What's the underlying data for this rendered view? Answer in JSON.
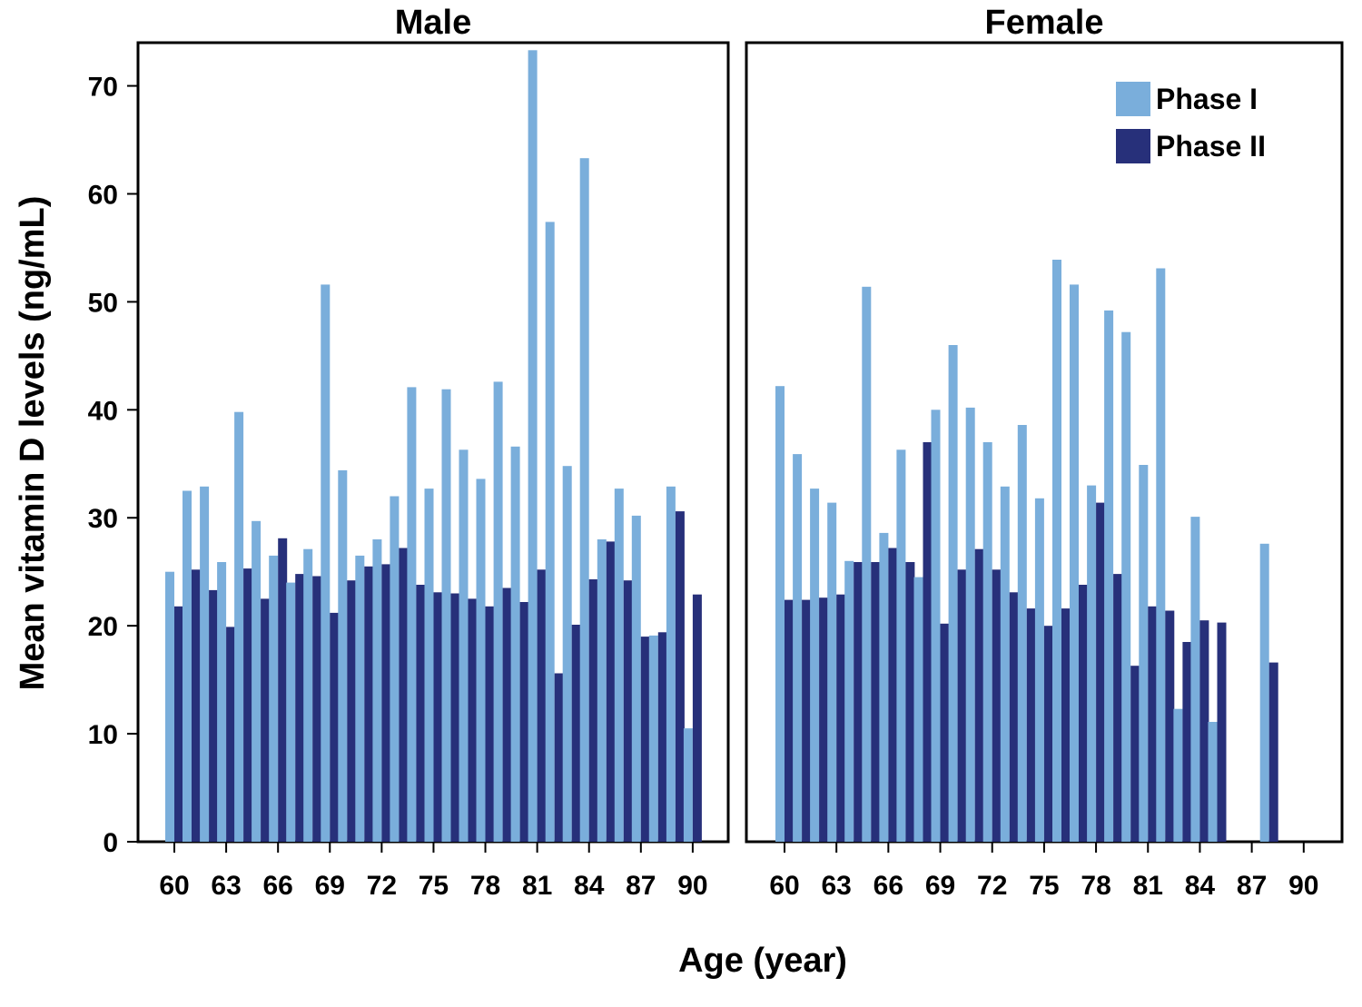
{
  "chart_data": {
    "type": "bar",
    "ylabel": "Mean vitamin D levels (ng/mL)",
    "xlabel": "Age (year)",
    "ylim": [
      0,
      74
    ],
    "yticks": [
      "0",
      "10",
      "20",
      "30",
      "40",
      "50",
      "60",
      "70"
    ],
    "xtick_labels": [
      "60",
      "63",
      "66",
      "69",
      "72",
      "75",
      "78",
      "81",
      "84",
      "87",
      "90"
    ],
    "legend": {
      "placement": "top-right",
      "entries": [
        {
          "name": "Phase I",
          "color": "#7aaedb"
        },
        {
          "name": "Phase II",
          "color": "#27307a"
        }
      ]
    },
    "x": [
      60,
      61,
      62,
      63,
      64,
      65,
      66,
      67,
      68,
      69,
      70,
      71,
      72,
      73,
      74,
      75,
      76,
      77,
      78,
      79,
      80,
      81,
      82,
      83,
      84,
      85,
      86,
      87,
      88,
      89,
      90
    ],
    "panels": [
      {
        "title": "Male",
        "series": [
          {
            "name": "Phase I",
            "values": [
              25.0,
              32.5,
              32.9,
              25.9,
              39.8,
              29.7,
              26.5,
              24.0,
              27.1,
              51.6,
              34.4,
              26.5,
              28.0,
              32.0,
              42.1,
              32.7,
              41.9,
              36.3,
              33.6,
              42.6,
              36.6,
              73.3,
              57.4,
              34.8,
              63.3,
              28.0,
              32.7,
              30.2,
              19.1,
              32.9,
              10.5
            ]
          },
          {
            "name": "Phase II",
            "values": [
              21.8,
              25.2,
              23.3,
              19.9,
              25.3,
              22.5,
              28.1,
              24.8,
              24.6,
              21.2,
              24.2,
              25.5,
              25.7,
              27.2,
              23.8,
              23.1,
              23.0,
              22.5,
              21.8,
              23.5,
              22.2,
              25.2,
              15.6,
              20.1,
              24.3,
              27.8,
              24.2,
              19.0,
              19.4,
              30.6,
              22.9
            ]
          }
        ]
      },
      {
        "title": "Female",
        "series": [
          {
            "name": "Phase I",
            "values": [
              42.2,
              35.9,
              32.7,
              31.4,
              26.0,
              51.4,
              28.6,
              36.3,
              24.5,
              40.0,
              46.0,
              40.2,
              37.0,
              32.9,
              38.6,
              31.8,
              53.9,
              51.6,
              33.0,
              49.2,
              47.2,
              34.9,
              53.1,
              12.3,
              30.1,
              11.1,
              null,
              null,
              27.6,
              null,
              null
            ]
          },
          {
            "name": "Phase II",
            "values": [
              22.4,
              22.4,
              22.6,
              22.9,
              25.9,
              25.9,
              27.2,
              25.9,
              37.0,
              20.2,
              25.2,
              27.1,
              25.2,
              23.1,
              21.6,
              20.0,
              21.6,
              23.8,
              31.4,
              24.8,
              16.3,
              21.8,
              21.4,
              18.5,
              20.5,
              20.3,
              null,
              null,
              16.6,
              null,
              null
            ]
          }
        ]
      }
    ]
  }
}
